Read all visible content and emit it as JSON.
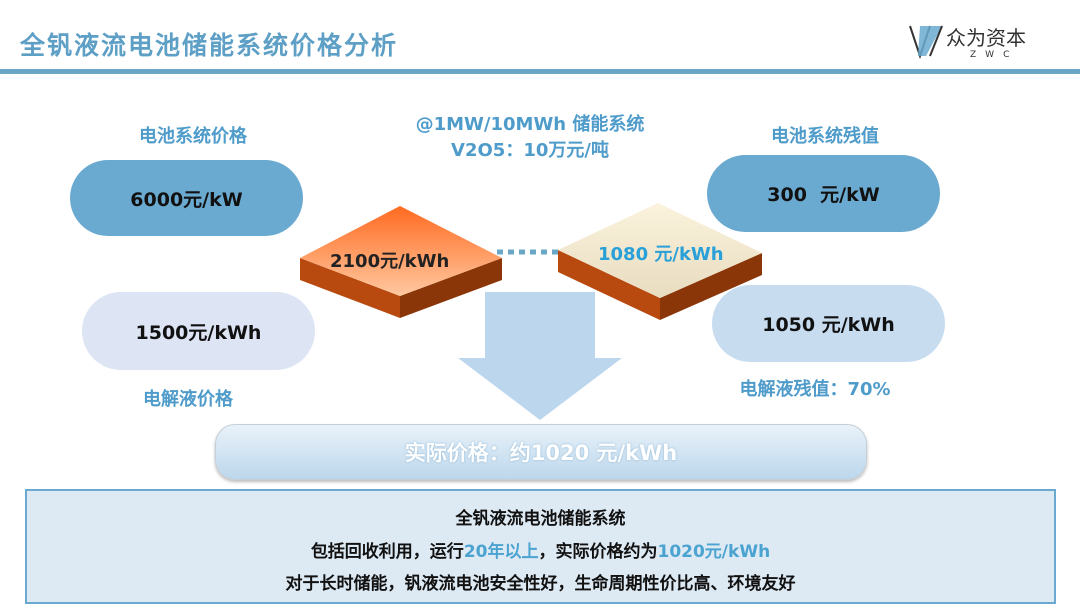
{
  "header": {
    "title": "全钒液流电池储能系统价格分析",
    "logo_cn": "众为资本",
    "logo_en": "ZWC"
  },
  "left": {
    "battery_price_label": "电池系统价格",
    "battery_price": "6000元/kW",
    "electrolyte_price": "1500元/kWh",
    "electrolyte_price_label": "电解液价格"
  },
  "center": {
    "spec_line1": "@1MW/10MWh 储能系统",
    "spec_line2": "V2O5：10万元/吨",
    "initial_cost": "2100元/kWh",
    "residual_cost": "1080 元/kWh",
    "actual_price": "实际价格：约1020 元/kWh"
  },
  "right": {
    "battery_residual_label": "电池系统残值",
    "battery_residual": "300  元/kW",
    "electrolyte_residual": "1050 元/kWh",
    "electrolyte_residual_label": "电解液残值：70%"
  },
  "summary": {
    "heading": "全钒液流电池储能系统",
    "line2_a": "包括回收利用，运行",
    "line2_b": "20年以上",
    "line2_c": "，实际价格约为",
    "line2_d": "1020元/kWh",
    "line3": "对于长时储能，钒液流电池安全性好，生命周期性价比高、环境友好"
  },
  "colors": {
    "accent": "#5e9fc6",
    "pill_dark": "#6aaad0",
    "pill_light": "#dde4f4",
    "highlight": "#4aa3d0",
    "orange": "#f07a3a",
    "cream": "#f4ead0"
  }
}
